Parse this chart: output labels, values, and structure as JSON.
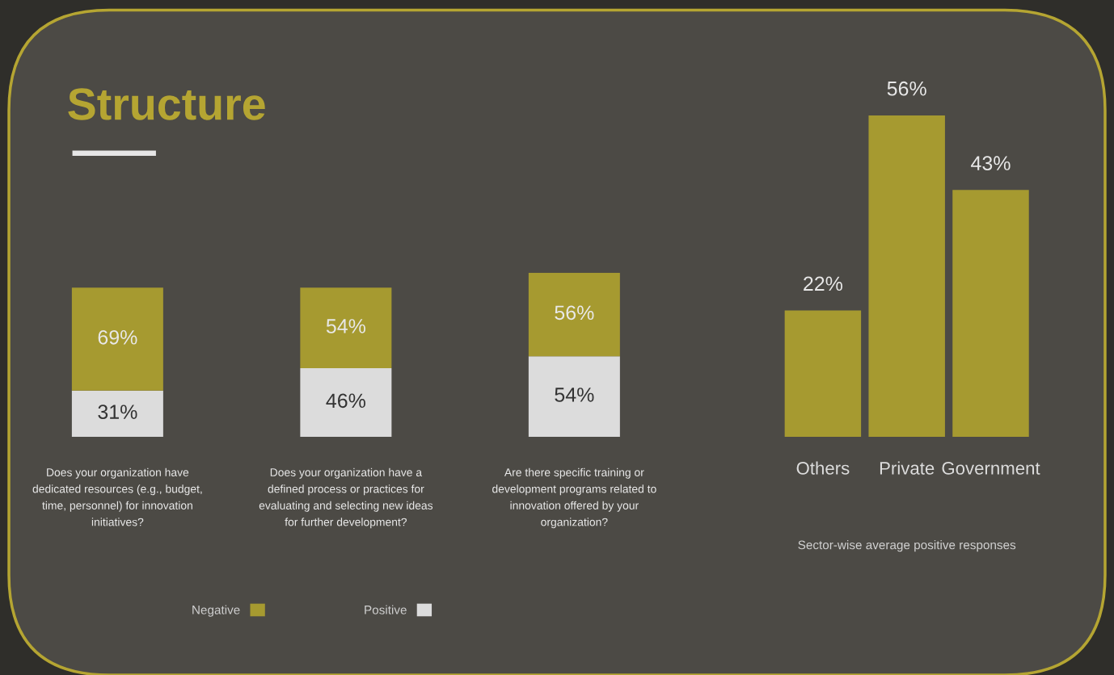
{
  "chart_data": [
    {
      "type": "bar",
      "title": "Structure",
      "stacked": true,
      "legend": "bottom",
      "categories": [
        "Does your organization have\ndedicated resources (e.g., budget,\ntime, personnel) for innovation\ninitiatives?",
        "Does your organization have a\ndefined process or practices for\nevaluating and selecting new ideas\nfor further development?",
        "Are there specific training or\ndevelopment programs related to\ninnovation offered by your\norganization?"
      ],
      "series": [
        {
          "name": "Positive",
          "color": "#dcdcdc",
          "values": [
            31,
            46,
            54
          ],
          "value_labels": [
            "31%",
            "46%",
            "54%"
          ]
        },
        {
          "name": "Negative",
          "color": "#a69a30",
          "values": [
            69,
            54,
            56
          ],
          "value_labels": [
            "69%",
            "54%",
            "56%"
          ]
        }
      ]
    },
    {
      "type": "bar",
      "color": "#a69a30",
      "categories": [
        "Others",
        "Private",
        "Government"
      ],
      "values": [
        22,
        56,
        43
      ],
      "value_labels": [
        "22%",
        "56%",
        "43%"
      ],
      "annotations": [
        "Sector-wise average positive responses"
      ]
    }
  ]
}
